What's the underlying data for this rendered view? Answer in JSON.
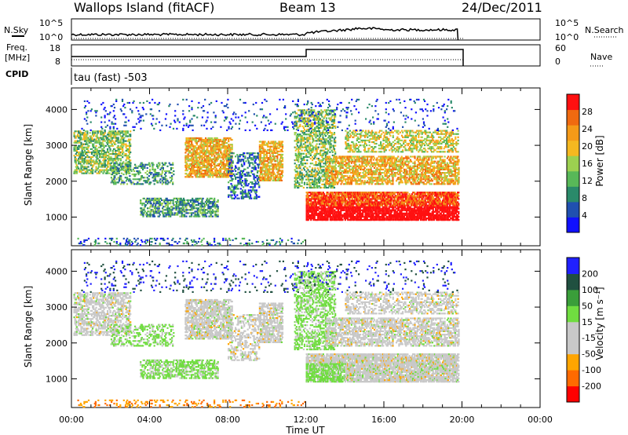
{
  "header": {
    "station": "Wallops Island (fitACF)",
    "beam": "Beam 13",
    "date": "24/Dec/2011"
  },
  "strips": {
    "nsky_label": "N.Sky",
    "nsearch_label": "N.Search",
    "nsky_ticks": [
      "10^5",
      "10^0"
    ],
    "nsky_right_ticks": [
      "10^5",
      "10^0"
    ],
    "freq_label": "Freq.",
    "freq_unit": "[MHz]",
    "freq_ticks": [
      "18",
      "8"
    ],
    "nave_label": "Nave",
    "nave_ticks": [
      "60",
      "0"
    ],
    "cpid_label": "CPID",
    "cpid_value": "tau (fast) -503"
  },
  "colors": {
    "power_scale": [
      "#1010ff",
      "#2050b0",
      "#2a8a6a",
      "#58b858",
      "#9cd050",
      "#f5b820",
      "#f59a18",
      "#f06a10",
      "#ff1010"
    ],
    "velocity_scale": [
      "#ff0000",
      "#ff6a00",
      "#ffa500",
      "#c8c8c8",
      "#c8c8c8",
      "#70dd40",
      "#3a9e3a",
      "#205040",
      "#2020ff"
    ]
  },
  "chart_data": [
    {
      "type": "heatmap",
      "name": "power",
      "ylabel": "Slant Range [km]",
      "ylim": [
        200,
        4600
      ],
      "yticks": [
        1000,
        2000,
        3000,
        4000
      ],
      "colorbar_label": "Power [dB]",
      "colorbar_ticks": [
        "28",
        "24",
        "20",
        "16",
        "12",
        "8",
        "4"
      ],
      "xlim": [
        "00:00",
        "24:00"
      ]
    },
    {
      "type": "heatmap",
      "name": "velocity",
      "ylabel": "Slant Range [km]",
      "ylim": [
        200,
        4600
      ],
      "yticks": [
        1000,
        2000,
        3000,
        4000
      ],
      "colorbar_label": "Velocity [m s⁻¹]",
      "colorbar_ticks": [
        "200",
        "100",
        "50",
        "15",
        "-15",
        "-50",
        "-100",
        "-200"
      ],
      "xlim": [
        "00:00",
        "24:00"
      ]
    }
  ],
  "xaxis": {
    "label": "Time UT",
    "ticks": [
      "00:00",
      "04:00",
      "08:00",
      "12:00",
      "16:00",
      "20:00",
      "00:00"
    ]
  }
}
